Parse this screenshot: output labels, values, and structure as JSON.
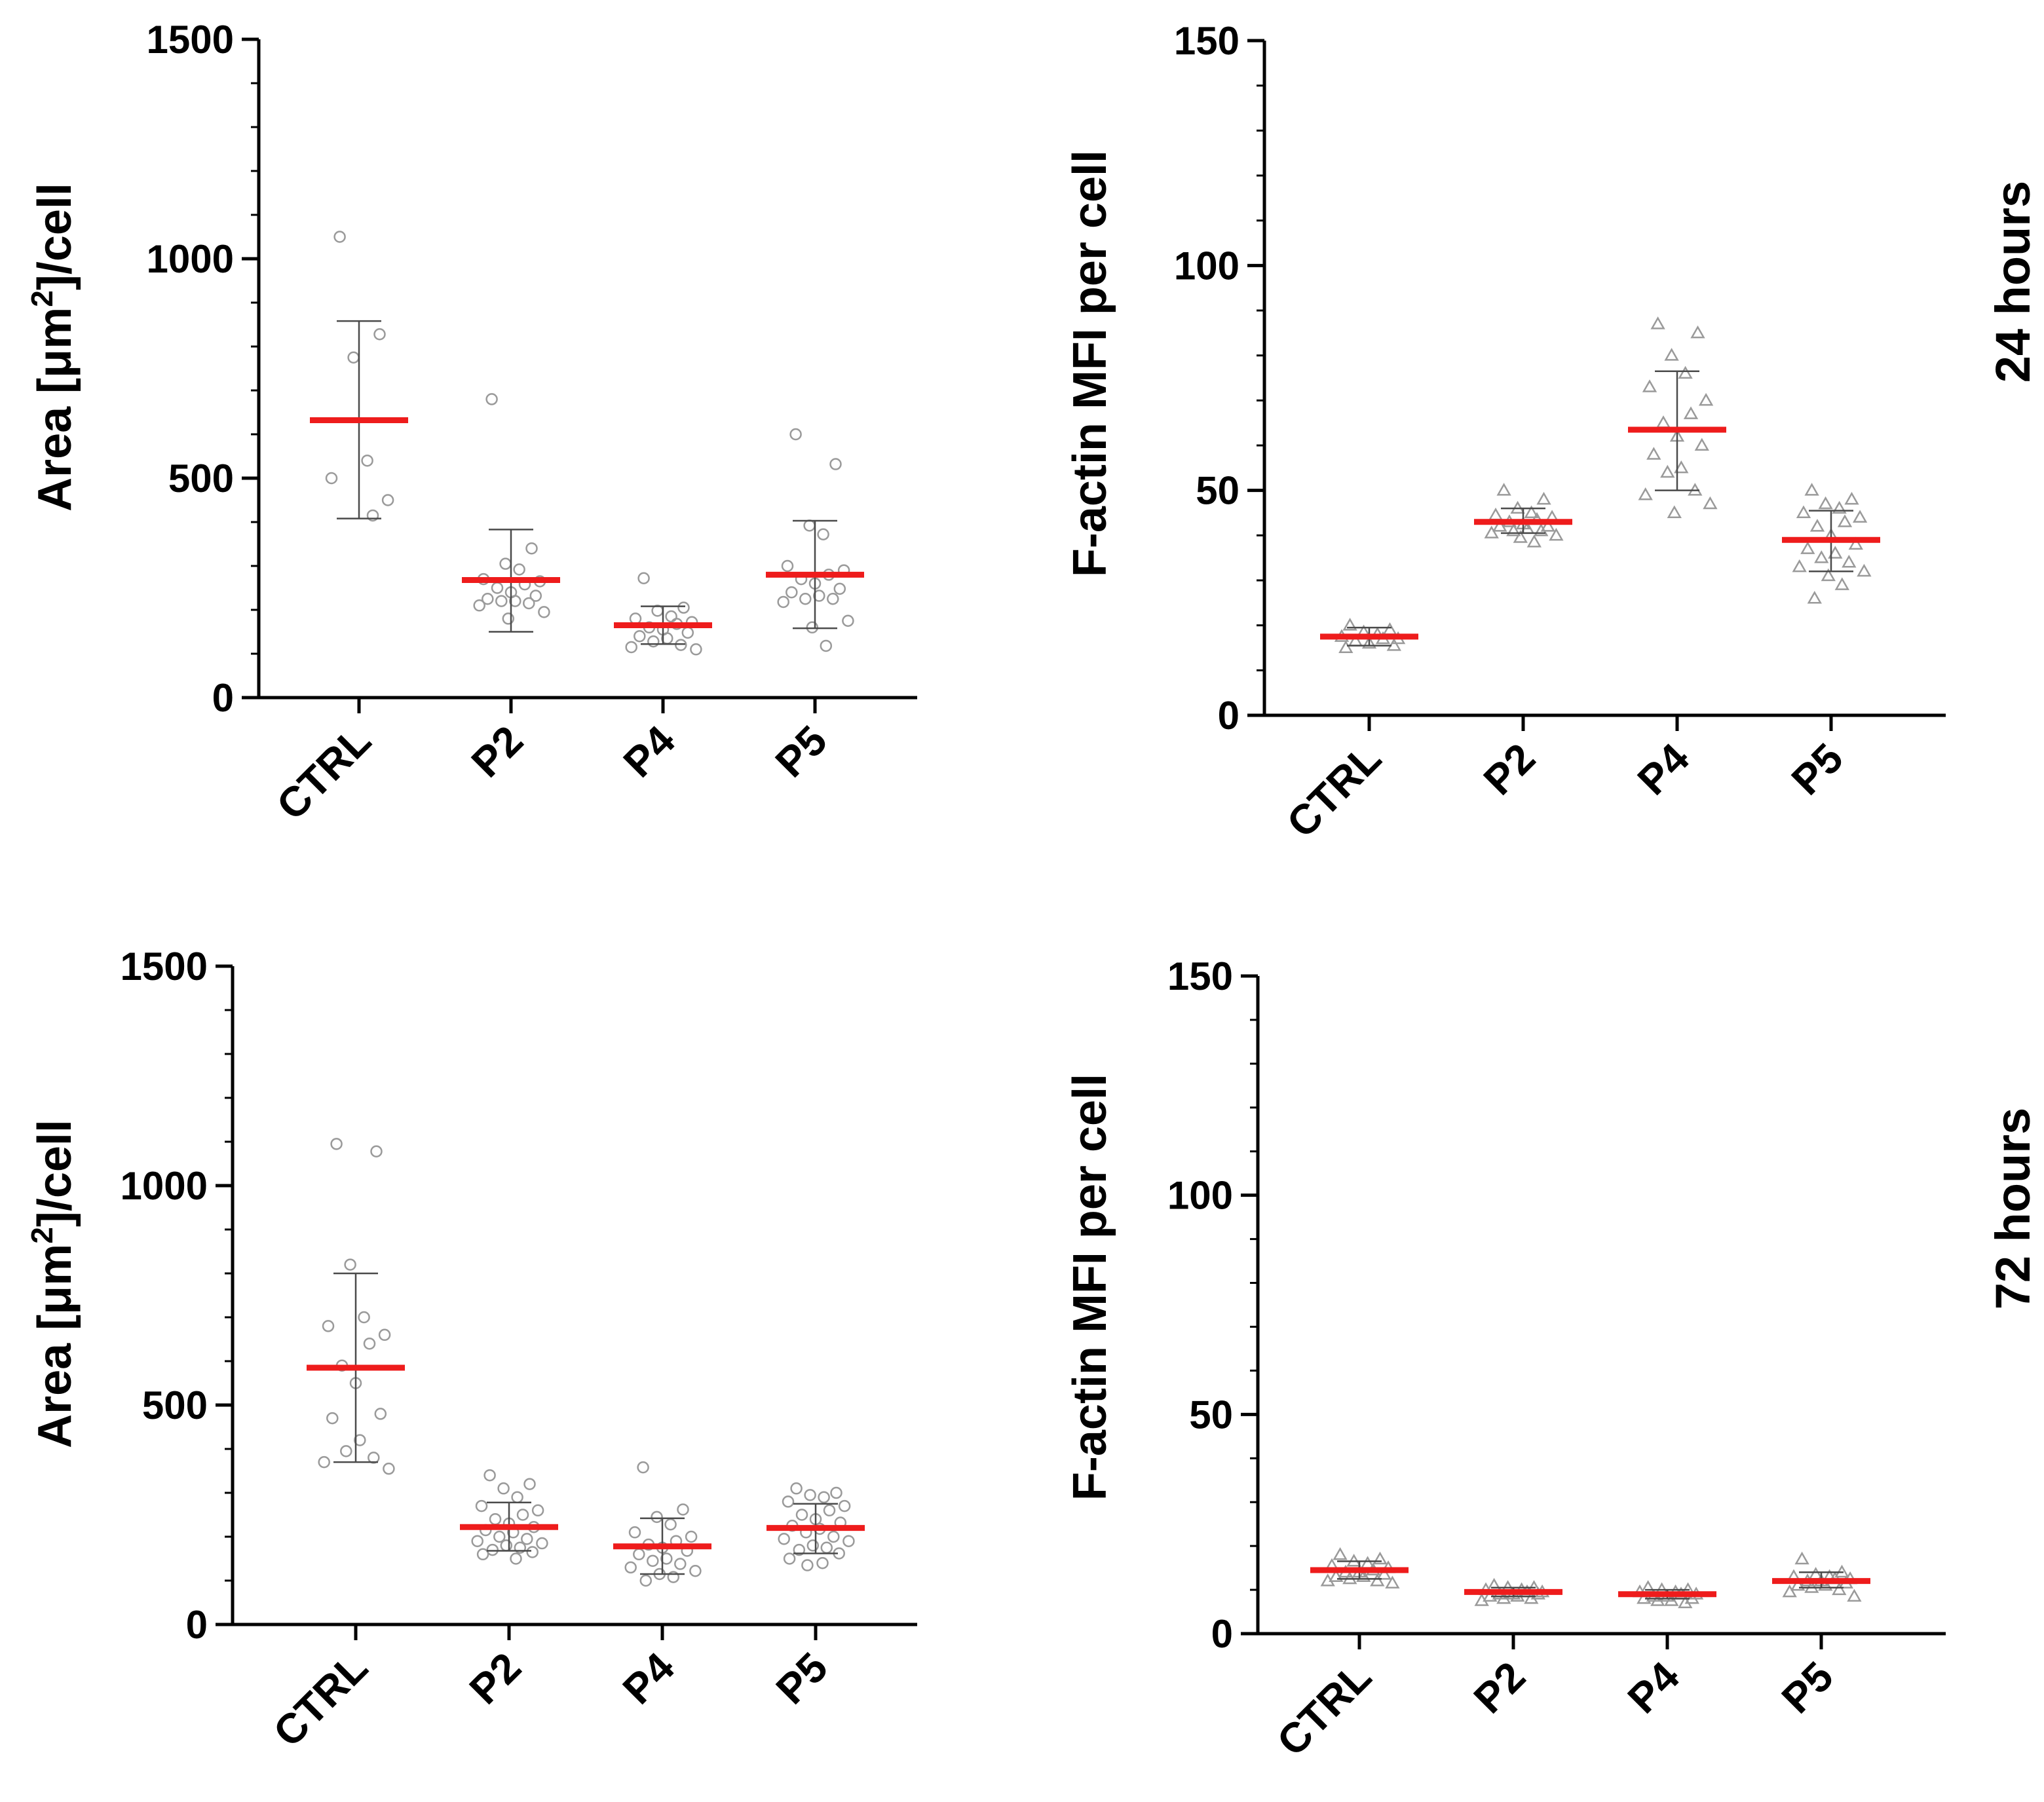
{
  "row_labels": [
    "24 hours",
    "72 hours"
  ],
  "colors": {
    "mean": "#ee1c1c",
    "point": "#9a9a9a",
    "errorbar": "#4a4a4a",
    "axis": "#000000"
  },
  "chart_data": [
    {
      "type": "scatter",
      "ylabel_parts": [
        "Area [",
        "μ",
        "m",
        "2",
        "]/cell"
      ],
      "categories": [
        "CTRL",
        "P2",
        "P4",
        "P5"
      ],
      "ylim": [
        0,
        1500
      ],
      "yticks": [
        0,
        500,
        1000,
        1500
      ],
      "marker": "circle",
      "groups": [
        {
          "name": "CTRL",
          "mean": 632,
          "sd_low": 408,
          "sd_high": 858,
          "points": [
            1050,
            828,
            775,
            540,
            500,
            450,
            415
          ]
        },
        {
          "name": "P2",
          "mean": 268,
          "sd_low": 150,
          "sd_high": 383,
          "points": [
            680,
            340,
            305,
            292,
            270,
            265,
            258,
            250,
            240,
            232,
            225,
            220,
            220,
            215,
            210,
            195,
            180
          ]
        },
        {
          "name": "P4",
          "mean": 165,
          "sd_low": 122,
          "sd_high": 208,
          "points": [
            272,
            205,
            198,
            185,
            180,
            172,
            168,
            160,
            155,
            148,
            140,
            135,
            128,
            120,
            115,
            110
          ]
        },
        {
          "name": "P5",
          "mean": 280,
          "sd_low": 158,
          "sd_high": 403,
          "points": [
            600,
            532,
            392,
            372,
            300,
            290,
            280,
            270,
            260,
            248,
            240,
            232,
            225,
            225,
            218,
            175,
            160,
            118
          ]
        }
      ]
    },
    {
      "type": "scatter",
      "ylabel_parts": [
        "F-actin MFI per cell"
      ],
      "categories": [
        "CTRL",
        "P2",
        "P4",
        "P5"
      ],
      "ylim": [
        0,
        150
      ],
      "yticks": [
        0,
        50,
        100,
        150
      ],
      "marker": "triangle",
      "groups": [
        {
          "name": "CTRL",
          "mean": 17.5,
          "sd_low": 15.5,
          "sd_high": 19.5,
          "points": [
            20,
            19,
            18.5,
            18,
            17.5,
            17,
            17,
            16.5,
            16,
            15.5,
            15
          ]
        },
        {
          "name": "P2",
          "mean": 43,
          "sd_low": 40.5,
          "sd_high": 46,
          "points": [
            50,
            48,
            46,
            45,
            44.5,
            44,
            43.5,
            43,
            42.5,
            42,
            42,
            41.5,
            41,
            41,
            40.5,
            40,
            39.5,
            38.5
          ]
        },
        {
          "name": "P4",
          "mean": 63.5,
          "sd_low": 50,
          "sd_high": 76.5,
          "points": [
            87,
            85,
            80,
            76,
            73,
            70,
            67,
            65,
            62,
            60,
            58,
            55,
            54,
            50,
            49,
            47,
            45
          ]
        },
        {
          "name": "P5",
          "mean": 39,
          "sd_low": 32,
          "sd_high": 45.5,
          "points": [
            50,
            48,
            47,
            46,
            45,
            44,
            43,
            42,
            40,
            38,
            37,
            36,
            35,
            34,
            33,
            32,
            31,
            29,
            26
          ]
        }
      ]
    },
    {
      "type": "scatter",
      "ylabel_parts": [
        "Area [",
        "μ",
        "m",
        "2",
        "]/cell"
      ],
      "categories": [
        "CTRL",
        "P2",
        "P4",
        "P5"
      ],
      "ylim": [
        0,
        1500
      ],
      "yticks": [
        0,
        500,
        1000,
        1500
      ],
      "marker": "circle",
      "groups": [
        {
          "name": "CTRL",
          "mean": 585,
          "sd_low": 370,
          "sd_high": 800,
          "points": [
            1095,
            1078,
            820,
            700,
            680,
            660,
            640,
            590,
            550,
            480,
            470,
            420,
            395,
            380,
            370,
            355
          ]
        },
        {
          "name": "P2",
          "mean": 222,
          "sd_low": 168,
          "sd_high": 278,
          "points": [
            340,
            320,
            310,
            290,
            270,
            260,
            250,
            240,
            230,
            222,
            215,
            210,
            200,
            195,
            190,
            185,
            180,
            175,
            170,
            165,
            160,
            150
          ]
        },
        {
          "name": "P4",
          "mean": 178,
          "sd_low": 115,
          "sd_high": 242,
          "points": [
            358,
            262,
            245,
            228,
            210,
            200,
            190,
            182,
            175,
            168,
            160,
            150,
            145,
            138,
            130,
            122,
            115,
            108,
            100
          ]
        },
        {
          "name": "P5",
          "mean": 220,
          "sd_low": 162,
          "sd_high": 275,
          "points": [
            310,
            300,
            295,
            290,
            280,
            270,
            260,
            250,
            240,
            232,
            225,
            218,
            210,
            200,
            195,
            190,
            180,
            175,
            170,
            162,
            150,
            140,
            135
          ]
        }
      ]
    },
    {
      "type": "scatter",
      "ylabel_parts": [
        "F-actin MFI per cell"
      ],
      "categories": [
        "CTRL",
        "P2",
        "P4",
        "P5"
      ],
      "ylim": [
        0,
        150
      ],
      "yticks": [
        0,
        50,
        100,
        150
      ],
      "marker": "triangle",
      "groups": [
        {
          "name": "CTRL",
          "mean": 14.5,
          "sd_low": 12.5,
          "sd_high": 16.5,
          "points": [
            18,
            17,
            16.5,
            16,
            15.5,
            15,
            14.5,
            14,
            14,
            13.5,
            13,
            13,
            12.5,
            12,
            12,
            11.5
          ]
        },
        {
          "name": "P2",
          "mean": 9.5,
          "sd_low": 8.5,
          "sd_high": 10.5,
          "points": [
            11,
            10.5,
            10.5,
            10,
            10,
            9.5,
            9.5,
            9,
            9,
            9,
            8.5,
            8.5,
            8,
            8,
            7.5
          ]
        },
        {
          "name": "P4",
          "mean": 9,
          "sd_low": 8,
          "sd_high": 10,
          "points": [
            10.5,
            10,
            10,
            9.5,
            9.5,
            9,
            9,
            8.5,
            8.5,
            8,
            8,
            7.5,
            7.5,
            7
          ]
        },
        {
          "name": "P5",
          "mean": 12,
          "sd_low": 10.5,
          "sd_high": 14,
          "points": [
            17,
            14,
            13.5,
            13,
            13,
            12.5,
            12.5,
            12,
            12,
            11.5,
            11,
            11,
            10.5,
            10,
            9.5,
            8.5
          ]
        }
      ]
    }
  ]
}
